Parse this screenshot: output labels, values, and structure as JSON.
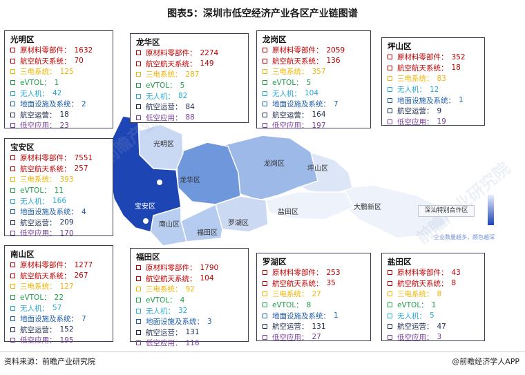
{
  "header": {
    "title": "图表5：深圳市低空经济产业各区产业链图谱"
  },
  "colors": {
    "原材料零部件": "#c00000",
    "航空航天系统": "#c00000",
    "三电系统": "#f0b400",
    "eVTOL": "#1f9d45",
    "无人机": "#27a9d8",
    "地面设施及系统": "#1f5fa8",
    "航空运营": "#1c2a4e",
    "低空应用": "#7a3f98"
  },
  "chart_data": {
    "type": "table",
    "categories": [
      "原材料零部件",
      "航空航天系统",
      "三电系统",
      "eVTOL",
      "无人机",
      "地面设施及系统",
      "航空运营",
      "低空应用"
    ],
    "rows": [
      {
        "district": "光明区",
        "values": [
          1632,
          70,
          125,
          1,
          42,
          2,
          18,
          23
        ]
      },
      {
        "district": "龙华区",
        "values": [
          2274,
          149,
          287,
          5,
          82,
          null,
          84,
          88
        ]
      },
      {
        "district": "龙岗区",
        "values": [
          2059,
          136,
          357,
          5,
          104,
          7,
          164,
          197
        ]
      },
      {
        "district": "坪山区",
        "values": [
          352,
          18,
          83,
          null,
          12,
          1,
          9,
          19
        ]
      },
      {
        "district": "宝安区",
        "values": [
          7551,
          257,
          393,
          11,
          166,
          4,
          209,
          170
        ]
      },
      {
        "district": "南山区",
        "values": [
          1277,
          267,
          127,
          22,
          57,
          7,
          152,
          195
        ]
      },
      {
        "district": "福田区",
        "values": [
          1790,
          104,
          92,
          4,
          32,
          3,
          131,
          116
        ]
      },
      {
        "district": "罗湖区",
        "values": [
          253,
          35,
          27,
          8,
          null,
          1,
          131,
          27
        ]
      },
      {
        "district": "盐田区",
        "values": [
          43,
          8,
          8,
          1,
          5,
          null,
          47,
          3
        ]
      }
    ]
  },
  "map": {
    "labels": [
      "光明区",
      "龙华区",
      "龙岗区",
      "坪山区",
      "宝安区",
      "南山区",
      "福田区",
      "罗湖区",
      "盐田区",
      "大鹏新区"
    ],
    "special_zone": "深汕特别合作区",
    "legend_note": "企业数量越多，颜色越深"
  },
  "footer": {
    "source": "资料来源：前瞻产业研究院",
    "credit": "@前瞻经济学人APP"
  },
  "watermark": "前瞻产业研究院"
}
